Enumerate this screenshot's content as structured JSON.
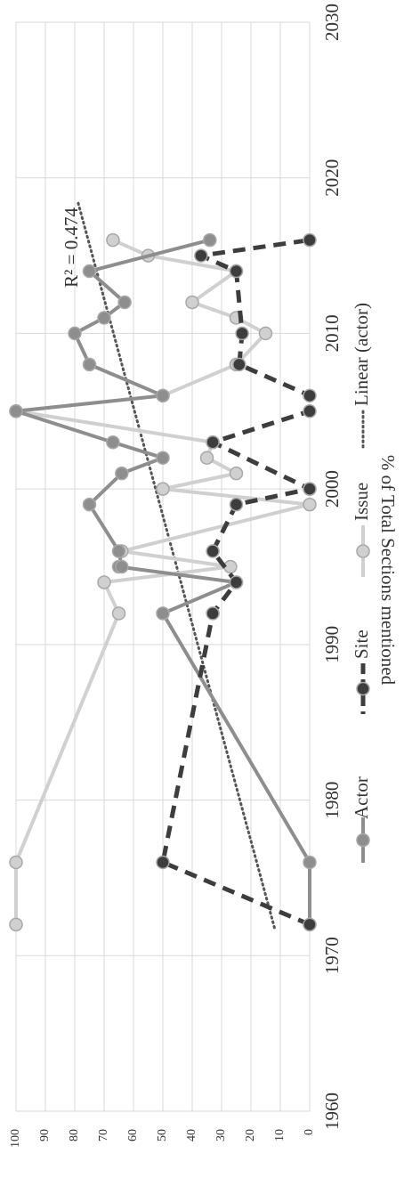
{
  "chart_data": {
    "type": "line",
    "title": "",
    "xlabel": "",
    "ylabel": "% of Total Sections mentioned",
    "xlim": [
      1960,
      2030
    ],
    "ylim": [
      0,
      100
    ],
    "x_ticks": [
      "1960",
      "1970",
      "1980",
      "1990",
      "2000",
      "2010",
      "2020",
      "2030"
    ],
    "y_ticks": [
      "0",
      "10",
      "20",
      "30",
      "40",
      "50",
      "60",
      "70",
      "80",
      "90",
      "100"
    ],
    "grid": true,
    "legend_position": "bottom",
    "series": [
      {
        "name": "Actor",
        "color": "#8e8e8e",
        "style": "solid",
        "x": [
          1972,
          1976,
          1992,
          1994,
          1995,
          1995,
          1996,
          1999,
          2001,
          2002,
          2003,
          2005,
          2006,
          2008,
          2010,
          2011,
          2012,
          2014,
          2016
        ],
        "y": [
          0,
          0,
          50,
          25,
          65,
          64,
          65,
          75,
          64,
          50,
          67,
          100,
          50,
          75,
          80,
          70,
          63,
          75,
          34
        ]
      },
      {
        "name": "Site",
        "color": "#3d3d3d",
        "style": "dashed",
        "x": [
          1972,
          1976,
          1992,
          1994,
          1996,
          1999,
          2000,
          2000,
          2003,
          2005,
          2006,
          2008,
          2010,
          2014,
          2015,
          2016
        ],
        "y": [
          0,
          50,
          33,
          25,
          33,
          25,
          0,
          0,
          33,
          0,
          0,
          24,
          23,
          25,
          37,
          0
        ]
      },
      {
        "name": "Issue",
        "color": "#d0d0d0",
        "style": "solid",
        "x": [
          1972,
          1976,
          1992,
          1994,
          1995,
          1996,
          1999,
          2000,
          2001,
          2002,
          2003,
          2005,
          2006,
          2008,
          2010,
          2011,
          2012,
          2014,
          2015,
          2016
        ],
        "y": [
          100,
          100,
          65,
          70,
          27,
          64,
          0,
          50,
          25,
          35,
          33,
          100,
          50,
          25,
          15,
          25,
          40,
          25,
          55,
          67
        ]
      }
    ],
    "trendline": {
      "name": "Linear (actor)",
      "color": "#555555",
      "style": "dotted",
      "x": [
        1971.8,
        2018.5
      ],
      "y": [
        12,
        79
      ],
      "annotation": "R² = 0.474"
    }
  }
}
